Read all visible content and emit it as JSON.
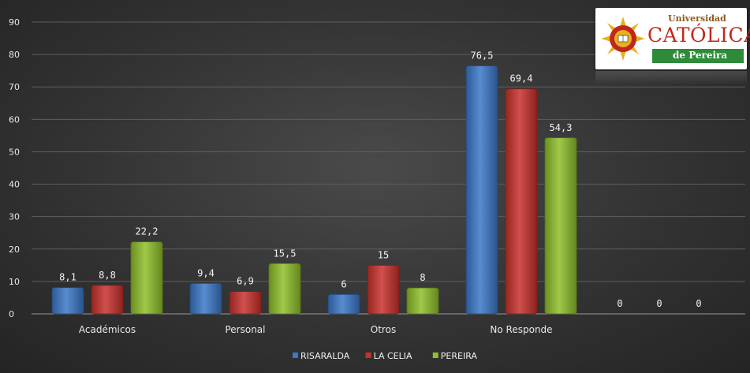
{
  "chart_data": {
    "type": "bar",
    "categories": [
      "Académicos",
      "Personal",
      "Otros",
      "No Responde",
      ""
    ],
    "series": [
      {
        "name": "RISARALDA",
        "color": "#3a78c8",
        "values": [
          8.1,
          9.4,
          6,
          76.5,
          0
        ],
        "labels": [
          "8,1",
          "9,4",
          "6",
          "76,5",
          "0"
        ]
      },
      {
        "name": "LA CELIA",
        "color": "#c8312c",
        "values": [
          8.8,
          6.9,
          15,
          69.4,
          0
        ],
        "labels": [
          "8,8",
          "6,9",
          "15",
          "69,4",
          "0"
        ]
      },
      {
        "name": "PEREIRA",
        "color": "#8fbf2a",
        "values": [
          22.2,
          15.5,
          8,
          54.3,
          0
        ],
        "labels": [
          "22,2",
          "15,5",
          "8",
          "54,3",
          "0"
        ]
      }
    ],
    "ylim": [
      0,
      90
    ],
    "yticks": [
      0,
      10,
      20,
      30,
      40,
      50,
      60,
      70,
      80,
      90
    ],
    "grid": true,
    "legend": "bottom-center"
  },
  "logo": {
    "line1": "Universidad",
    "line2": "CATÓLICA",
    "line3": "de Pereira",
    "colors": {
      "red": "#c0281c",
      "green": "#2e8b3a",
      "gold": "#e8b020"
    }
  }
}
